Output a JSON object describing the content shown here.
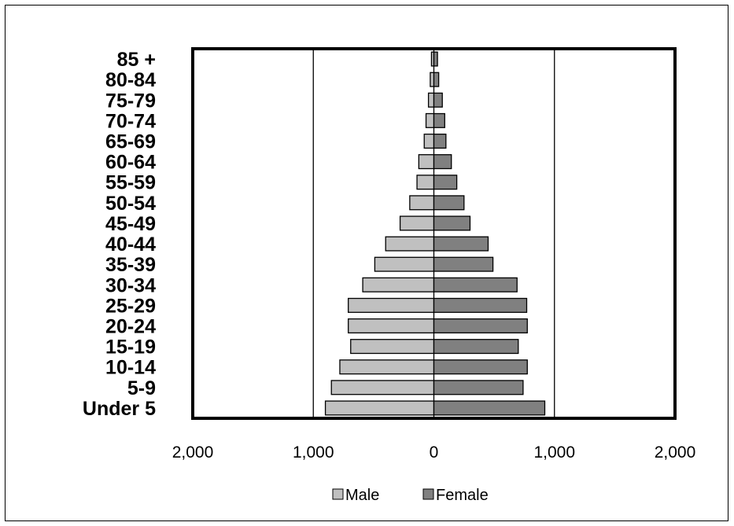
{
  "chart_data": {
    "type": "bar",
    "orientation": "horizontal",
    "layout": "population-pyramid",
    "categories": [
      "85 +",
      "80-84",
      "75-79",
      "70-74",
      "65-69",
      "60-64",
      "55-59",
      "50-54",
      "45-49",
      "40-44",
      "35-39",
      "30-34",
      "25-29",
      "20-24",
      "15-19",
      "10-14",
      "5-9",
      "Under 5"
    ],
    "series": [
      {
        "name": "Male",
        "color": "#c0c0c0",
        "side": "left",
        "values": [
          20,
          30,
          45,
          65,
          80,
          125,
          140,
          200,
          280,
          400,
          490,
          590,
          710,
          710,
          690,
          780,
          850,
          900
        ]
      },
      {
        "name": "Female",
        "color": "#808080",
        "side": "right",
        "values": [
          30,
          40,
          70,
          90,
          100,
          145,
          190,
          250,
          300,
          450,
          490,
          690,
          770,
          775,
          700,
          775,
          740,
          920
        ]
      }
    ],
    "xlim": [
      -2000,
      2000
    ],
    "xticks": [
      -2000,
      -1000,
      0,
      1000,
      2000
    ],
    "xtick_labels": [
      "2,000",
      "1,000",
      "0",
      "1,000",
      "2,000"
    ],
    "gridlines_at": [
      -1000,
      0,
      1000
    ],
    "legend_position": "bottom",
    "title": "",
    "xlabel": "",
    "ylabel": ""
  }
}
